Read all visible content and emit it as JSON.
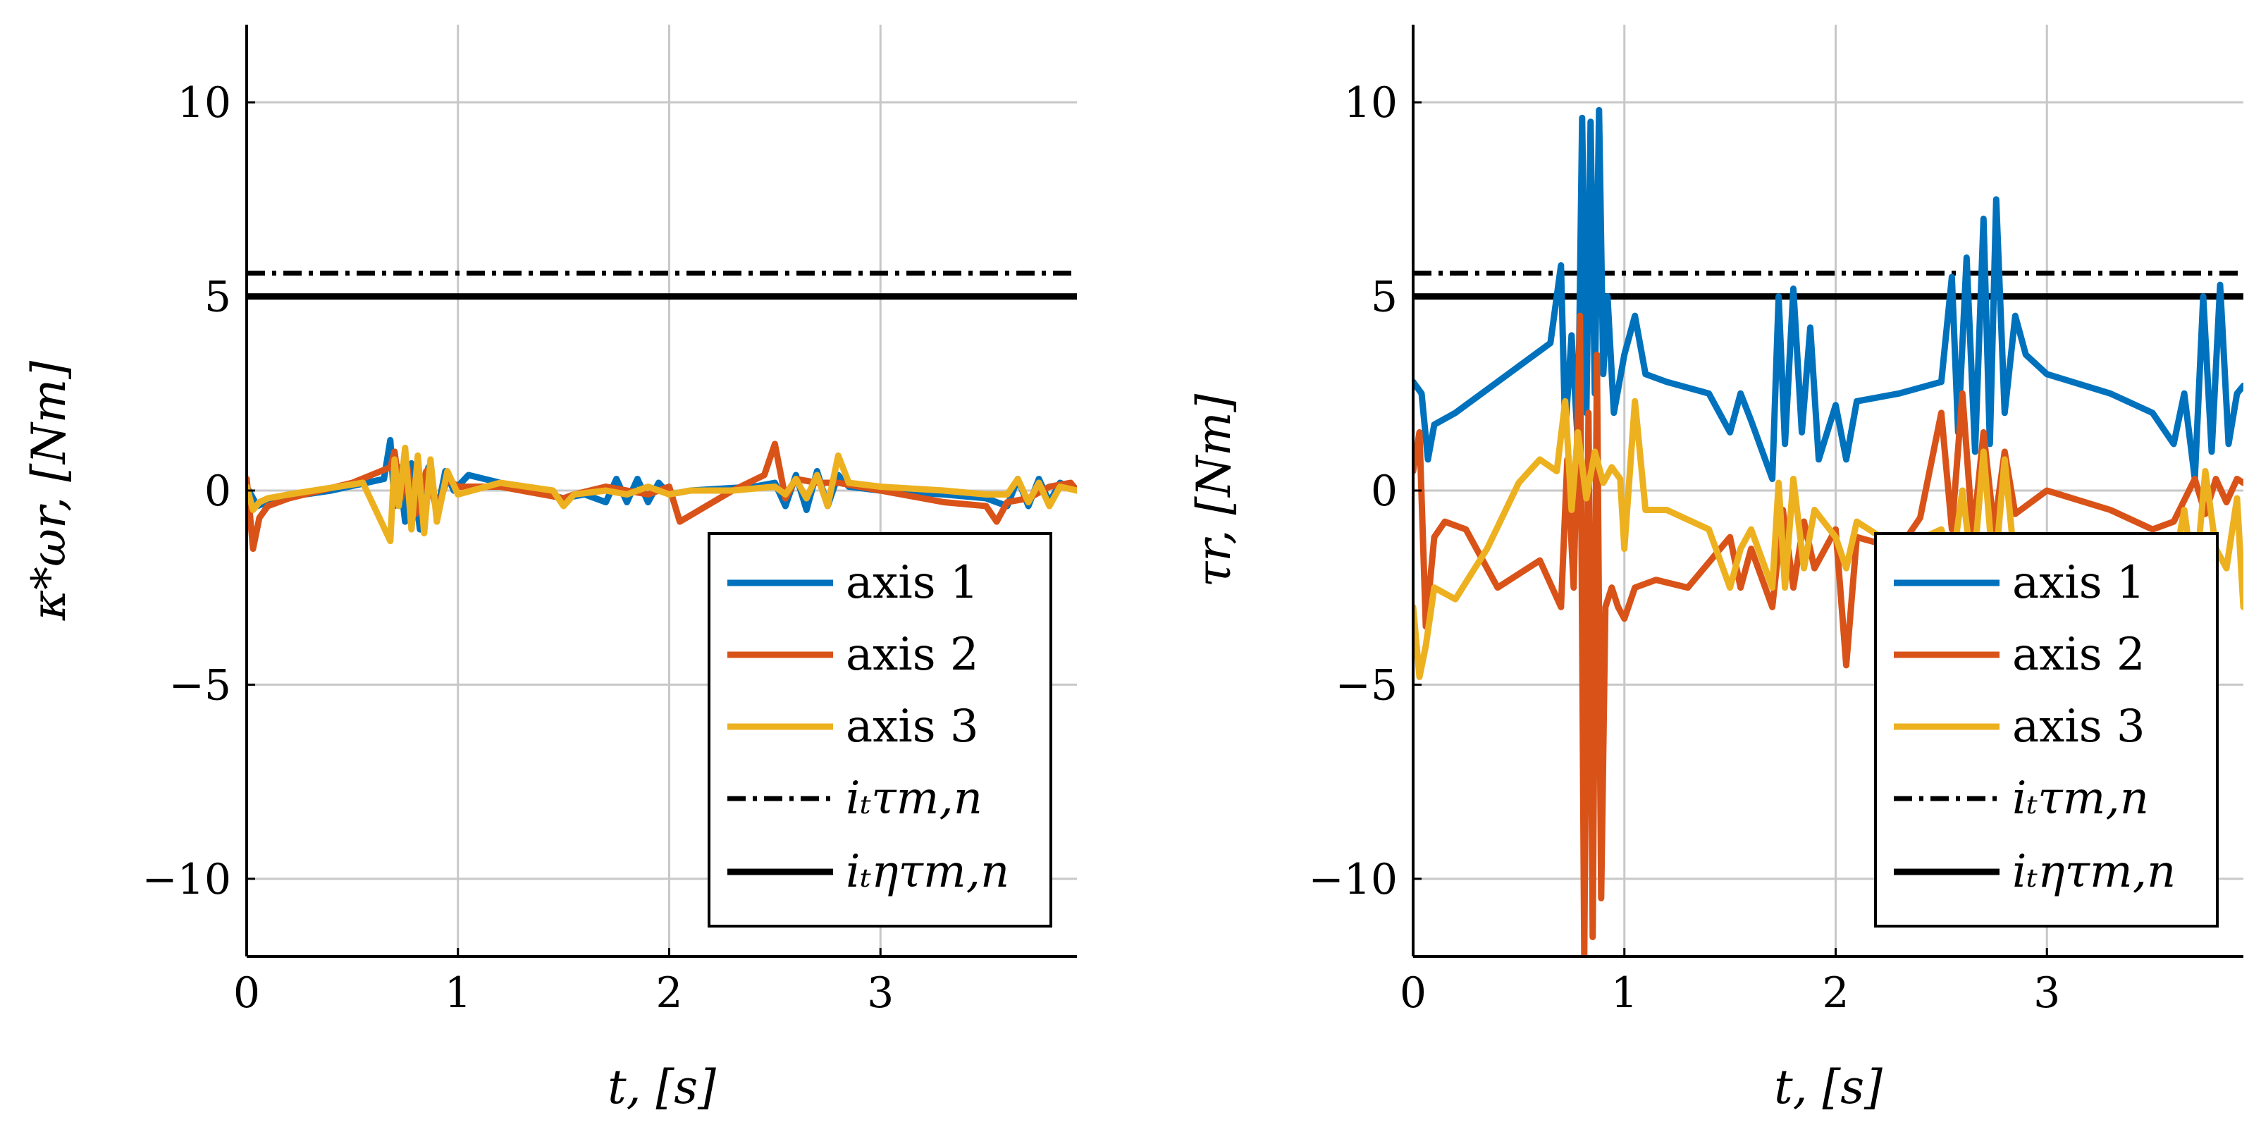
{
  "legend": {
    "axis1": "axis 1",
    "axis2": "axis 2",
    "axis3": "axis 3",
    "nominal": "iₜτm,n",
    "nominal_eff": "iₜητm,n"
  },
  "colors": {
    "axis1": "#0072BD",
    "axis2": "#D95319",
    "axis3": "#EDB120",
    "limit": "#000000",
    "grid": "#c8c8c8"
  },
  "chart_data": [
    {
      "type": "line",
      "id": "left",
      "ylabel": "κ*ωr, [Nm]",
      "xlabel": "t, [s]",
      "xlim": [
        0,
        3.93
      ],
      "ylim": [
        -12,
        12
      ],
      "xticks": [
        0,
        1,
        2,
        3
      ],
      "yticks": [
        -10,
        -5,
        0,
        5,
        10
      ],
      "xtick_labels": [
        "0",
        "1",
        "2",
        "3"
      ],
      "ytick_labels": [
        "−10",
        "−5",
        "0",
        "5",
        "10"
      ],
      "grid": true,
      "legend_position": "bottom-right",
      "hlines": [
        {
          "name": "iₜτm,n",
          "value": 5.6,
          "style": "dashdot"
        },
        {
          "name": "iₜητm,n",
          "value": 5.0,
          "style": "solid"
        }
      ],
      "series": [
        {
          "name": "axis 1",
          "x": [
            0,
            0.05,
            0.15,
            0.4,
            0.65,
            0.68,
            0.7,
            0.72,
            0.75,
            0.78,
            0.82,
            0.86,
            0.9,
            0.94,
            0.98,
            1.05,
            1.2,
            1.5,
            1.6,
            1.7,
            1.75,
            1.8,
            1.85,
            1.9,
            1.95,
            2.0,
            2.1,
            2.4,
            2.5,
            2.55,
            2.6,
            2.65,
            2.7,
            2.75,
            2.8,
            2.85,
            3.0,
            3.3,
            3.5,
            3.6,
            3.65,
            3.7,
            3.75,
            3.8,
            3.85,
            3.93
          ],
          "values": [
            0.1,
            -0.4,
            -0.2,
            0,
            0.3,
            1.3,
            -0.4,
            0.6,
            -0.8,
            0.7,
            -1.0,
            0.6,
            -0.6,
            0.5,
            0,
            0.4,
            0.2,
            -0.2,
            -0.1,
            -0.3,
            0.3,
            -0.3,
            0.3,
            -0.3,
            0.2,
            -0.1,
            0,
            0.1,
            0.2,
            -0.4,
            0.4,
            -0.5,
            0.5,
            -0.4,
            0.4,
            0.1,
            0,
            -0.1,
            -0.2,
            -0.4,
            0.3,
            -0.4,
            0.3,
            -0.3,
            0.2,
            0
          ]
        },
        {
          "name": "axis 2",
          "x": [
            0,
            0.03,
            0.06,
            0.1,
            0.2,
            0.5,
            0.68,
            0.7,
            0.73,
            0.76,
            0.8,
            0.85,
            0.9,
            0.95,
            1.0,
            1.2,
            1.5,
            1.55,
            1.7,
            1.9,
            2.0,
            2.05,
            2.3,
            2.45,
            2.5,
            2.55,
            2.6,
            2.7,
            2.8,
            3.0,
            3.3,
            3.5,
            3.55,
            3.6,
            3.7,
            3.8,
            3.9,
            3.93
          ],
          "values": [
            0.3,
            -1.5,
            -0.7,
            -0.4,
            -0.2,
            0.2,
            0.6,
            1.0,
            -0.2,
            0.6,
            -0.6,
            0.5,
            -0.5,
            0.3,
            0.1,
            0.1,
            -0.2,
            -0.1,
            0.1,
            -0.1,
            0.1,
            -0.8,
            0,
            0.4,
            1.2,
            -0.2,
            0.3,
            0.2,
            0.2,
            0,
            -0.3,
            -0.4,
            -0.8,
            -0.3,
            -0.2,
            0.1,
            0.2,
            0
          ]
        },
        {
          "name": "axis 3",
          "x": [
            0,
            0.03,
            0.06,
            0.1,
            0.2,
            0.55,
            0.68,
            0.7,
            0.72,
            0.75,
            0.78,
            0.81,
            0.84,
            0.87,
            0.9,
            0.95,
            1.0,
            1.2,
            1.45,
            1.5,
            1.55,
            1.7,
            1.8,
            1.9,
            2.0,
            2.1,
            2.3,
            2.5,
            2.55,
            2.6,
            2.65,
            2.7,
            2.75,
            2.8,
            2.85,
            3.0,
            3.3,
            3.5,
            3.6,
            3.65,
            3.7,
            3.75,
            3.8,
            3.85,
            3.93
          ],
          "values": [
            0.1,
            -0.5,
            -0.3,
            -0.2,
            -0.1,
            0.2,
            -1.3,
            0.8,
            -0.4,
            1.1,
            -1.0,
            0.9,
            -1.1,
            0.8,
            -0.8,
            0.5,
            -0.1,
            0.2,
            0,
            -0.4,
            -0.1,
            0,
            -0.1,
            0.1,
            -0.1,
            0,
            0,
            0.1,
            -0.1,
            0.3,
            -0.2,
            0.4,
            -0.4,
            0.9,
            0.2,
            0.1,
            0,
            -0.1,
            -0.1,
            0.3,
            -0.3,
            0.2,
            -0.4,
            0.1,
            0
          ]
        }
      ]
    },
    {
      "type": "line",
      "id": "right",
      "ylabel": "τr, [Nm]",
      "xlabel": "t, [s]",
      "xlim": [
        0,
        3.93
      ],
      "ylim": [
        -12,
        12
      ],
      "xticks": [
        0,
        1,
        2,
        3
      ],
      "yticks": [
        -10,
        -5,
        0,
        5,
        10
      ],
      "xtick_labels": [
        "0",
        "1",
        "2",
        "3"
      ],
      "ytick_labels": [
        "−10",
        "−5",
        "0",
        "5",
        "10"
      ],
      "grid": true,
      "legend_position": "bottom-right",
      "hlines": [
        {
          "name": "iₜτm,n",
          "value": 5.6,
          "style": "dashdot"
        },
        {
          "name": "iₜητm,n",
          "value": 5.0,
          "style": "solid"
        }
      ],
      "series": [
        {
          "name": "axis 1",
          "x": [
            0,
            0.04,
            0.07,
            0.1,
            0.2,
            0.4,
            0.6,
            0.65,
            0.7,
            0.72,
            0.75,
            0.78,
            0.8,
            0.82,
            0.84,
            0.86,
            0.88,
            0.9,
            0.92,
            0.95,
            1.0,
            1.05,
            1.1,
            1.2,
            1.4,
            1.5,
            1.55,
            1.6,
            1.7,
            1.73,
            1.76,
            1.8,
            1.84,
            1.88,
            1.92,
            2.0,
            2.05,
            2.1,
            2.3,
            2.5,
            2.55,
            2.58,
            2.62,
            2.66,
            2.7,
            2.73,
            2.76,
            2.8,
            2.85,
            2.9,
            3.0,
            3.3,
            3.5,
            3.6,
            3.65,
            3.7,
            3.74,
            3.78,
            3.82,
            3.86,
            3.9,
            3.93
          ],
          "values": [
            2.8,
            2.5,
            0.8,
            1.7,
            2.0,
            2.8,
            3.6,
            3.8,
            5.8,
            1.5,
            4.0,
            1.2,
            9.6,
            2.0,
            9.5,
            2.5,
            9.8,
            3.0,
            5.0,
            2.0,
            3.5,
            4.5,
            3.0,
            2.8,
            2.5,
            1.5,
            2.5,
            1.8,
            0.3,
            5.0,
            1.2,
            5.2,
            1.5,
            4.2,
            0.8,
            2.2,
            0.8,
            2.3,
            2.5,
            2.8,
            5.5,
            1.5,
            6.0,
            1.0,
            7.0,
            1.2,
            7.5,
            2.0,
            4.5,
            3.5,
            3.0,
            2.5,
            2.0,
            1.2,
            2.5,
            0.3,
            5.0,
            1.0,
            5.3,
            1.2,
            2.5,
            2.7
          ]
        },
        {
          "name": "axis 2",
          "x": [
            0,
            0.03,
            0.06,
            0.1,
            0.15,
            0.25,
            0.4,
            0.6,
            0.7,
            0.73,
            0.76,
            0.79,
            0.81,
            0.83,
            0.85,
            0.87,
            0.89,
            0.91,
            0.94,
            0.97,
            1.0,
            1.05,
            1.15,
            1.3,
            1.5,
            1.55,
            1.6,
            1.7,
            1.75,
            1.8,
            1.85,
            1.9,
            2.0,
            2.05,
            2.1,
            2.3,
            2.4,
            2.5,
            2.55,
            2.6,
            2.65,
            2.7,
            2.75,
            2.8,
            2.85,
            3.0,
            3.3,
            3.5,
            3.6,
            3.7,
            3.75,
            3.8,
            3.85,
            3.9,
            3.93
          ],
          "values": [
            0.5,
            1.5,
            -3.5,
            -1.2,
            -0.8,
            -1.0,
            -2.5,
            -1.8,
            -3.0,
            0.8,
            -2.5,
            4.5,
            -12.0,
            2.0,
            -11.5,
            3.5,
            -10.5,
            -3.0,
            -2.5,
            -3.0,
            -3.3,
            -2.5,
            -2.3,
            -2.5,
            -1.2,
            -2.5,
            -1.5,
            -3.0,
            -0.5,
            -2.5,
            -0.8,
            -2.0,
            -1.0,
            -4.5,
            -1.2,
            -1.5,
            -0.7,
            2.0,
            -1.0,
            2.5,
            -1.2,
            1.5,
            -1.0,
            1.0,
            -0.6,
            0.0,
            -0.5,
            -1.0,
            -0.8,
            0.3,
            -0.6,
            0.3,
            -0.3,
            0.3,
            0.2
          ]
        },
        {
          "name": "axis 3",
          "x": [
            0,
            0.03,
            0.06,
            0.1,
            0.2,
            0.35,
            0.5,
            0.6,
            0.68,
            0.72,
            0.75,
            0.78,
            0.82,
            0.86,
            0.9,
            0.94,
            0.98,
            1.0,
            1.05,
            1.1,
            1.2,
            1.4,
            1.5,
            1.55,
            1.6,
            1.7,
            1.73,
            1.76,
            1.8,
            1.85,
            1.9,
            2.0,
            2.05,
            2.1,
            2.3,
            2.5,
            2.55,
            2.6,
            2.65,
            2.7,
            2.75,
            2.8,
            2.85,
            2.9,
            3.0,
            3.2,
            3.4,
            3.5,
            3.6,
            3.65,
            3.7,
            3.75,
            3.8,
            3.85,
            3.9,
            3.93
          ],
          "values": [
            -3.0,
            -4.8,
            -4.0,
            -2.5,
            -2.8,
            -1.5,
            0.2,
            0.8,
            0.5,
            2.3,
            -0.5,
            1.5,
            -0.2,
            1.0,
            0.2,
            0.6,
            0.3,
            -1.5,
            2.3,
            -0.5,
            -0.5,
            -1.0,
            -2.5,
            -1.5,
            -1.0,
            -2.5,
            0.2,
            -2.5,
            0.3,
            -2.0,
            -0.5,
            -1.2,
            -2.0,
            -0.8,
            -1.5,
            -1.0,
            -2.0,
            0.0,
            -2.2,
            1.0,
            -2.3,
            0.8,
            -2.0,
            -1.5,
            -1.2,
            -1.5,
            -1.5,
            -1.8,
            -2.0,
            -0.5,
            -2.5,
            0.5,
            -1.5,
            -2.0,
            -0.2,
            -3.0
          ]
        }
      ]
    }
  ]
}
